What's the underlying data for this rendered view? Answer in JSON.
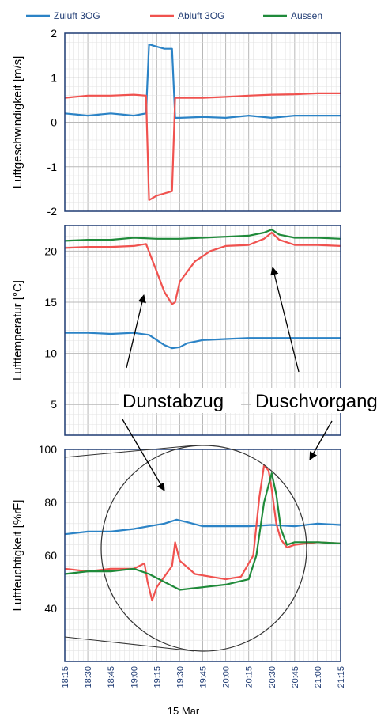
{
  "legend": [
    {
      "label": "Zuluft 3OG",
      "color": "#2b83c6"
    },
    {
      "label": "Abluft 3OG",
      "color": "#f0524f"
    },
    {
      "label": "Aussen",
      "color": "#1f8a3a"
    }
  ],
  "annotations": [
    "Dunstabzug",
    "Duschvorgang"
  ],
  "x_date_label": "15 Mar",
  "chart_data": [
    {
      "type": "line",
      "ylabel": "Luftgeschwindigkeit [m/s]",
      "ylim": [
        -2,
        2
      ],
      "yticks": [
        2,
        1,
        0,
        -1,
        -2
      ],
      "xlim": [
        "18:15",
        "21:15"
      ],
      "grid": true,
      "series": [
        {
          "name": "Zuluft 3OG",
          "color": "#2b83c6",
          "x": [
            "18:15",
            "18:30",
            "18:45",
            "19:00",
            "19:08",
            "19:10",
            "19:15",
            "19:20",
            "19:25",
            "19:27",
            "19:30",
            "19:45",
            "20:00",
            "20:15",
            "20:30",
            "20:45",
            "21:00",
            "21:15"
          ],
          "y": [
            0.2,
            0.15,
            0.2,
            0.15,
            0.2,
            1.75,
            1.7,
            1.65,
            1.65,
            0.1,
            0.1,
            0.12,
            0.1,
            0.15,
            0.1,
            0.15,
            0.15,
            0.15
          ]
        },
        {
          "name": "Abluft 3OG",
          "color": "#f0524f",
          "x": [
            "18:15",
            "18:30",
            "18:45",
            "19:00",
            "19:08",
            "19:10",
            "19:15",
            "19:20",
            "19:25",
            "19:27",
            "19:30",
            "19:45",
            "20:00",
            "20:15",
            "20:30",
            "20:45",
            "21:00",
            "21:15"
          ],
          "y": [
            0.55,
            0.6,
            0.6,
            0.62,
            0.6,
            -1.75,
            -1.65,
            -1.6,
            -1.55,
            0.55,
            0.55,
            0.55,
            0.57,
            0.6,
            0.62,
            0.63,
            0.65,
            0.65
          ]
        }
      ]
    },
    {
      "type": "line",
      "ylabel": "Lufttemperatur [°C]",
      "ylim": [
        2,
        22.5
      ],
      "yticks": [
        20,
        15,
        10,
        5
      ],
      "xlim": [
        "18:15",
        "21:15"
      ],
      "grid": true,
      "series": [
        {
          "name": "Zuluft 3OG",
          "color": "#2b83c6",
          "x": [
            "18:15",
            "18:30",
            "18:45",
            "19:00",
            "19:10",
            "19:20",
            "19:25",
            "19:30",
            "19:35",
            "19:45",
            "20:00",
            "20:15",
            "20:30",
            "20:45",
            "21:00",
            "21:15"
          ],
          "y": [
            12,
            12,
            11.9,
            12,
            11.8,
            10.8,
            10.5,
            10.6,
            11,
            11.3,
            11.4,
            11.5,
            11.5,
            11.5,
            11.5,
            11.5
          ]
        },
        {
          "name": "Abluft 3OG",
          "color": "#f0524f",
          "x": [
            "18:15",
            "18:30",
            "18:45",
            "19:00",
            "19:08",
            "19:15",
            "19:20",
            "19:25",
            "19:27",
            "19:30",
            "19:40",
            "19:50",
            "20:00",
            "20:15",
            "20:25",
            "20:30",
            "20:35",
            "20:45",
            "21:00",
            "21:15"
          ],
          "y": [
            20.3,
            20.4,
            20.4,
            20.5,
            20.7,
            18,
            16,
            14.8,
            15,
            17,
            19,
            20,
            20.5,
            20.6,
            21.2,
            21.8,
            21.1,
            20.6,
            20.6,
            20.5
          ]
        },
        {
          "name": "Aussen",
          "color": "#1f8a3a",
          "x": [
            "18:15",
            "18:30",
            "18:45",
            "19:00",
            "19:15",
            "19:30",
            "19:45",
            "20:00",
            "20:15",
            "20:25",
            "20:30",
            "20:35",
            "20:45",
            "21:00",
            "21:15"
          ],
          "y": [
            21,
            21.1,
            21.1,
            21.3,
            21.2,
            21.2,
            21.3,
            21.4,
            21.5,
            21.8,
            22.1,
            21.6,
            21.3,
            21.3,
            21.2
          ]
        }
      ]
    },
    {
      "type": "line",
      "ylabel": "Luftfeuchtigkeit [%rF]",
      "ylim": [
        20,
        100
      ],
      "yticks": [
        100,
        80,
        60,
        40
      ],
      "xlim": [
        "18:15",
        "21:15"
      ],
      "xticks": [
        "18:15",
        "18:30",
        "18:45",
        "19:00",
        "19:15",
        "19:30",
        "19:45",
        "20:00",
        "20:15",
        "20:30",
        "20:45",
        "21:00",
        "21:15"
      ],
      "grid": true,
      "series": [
        {
          "name": "Zuluft 3OG",
          "color": "#2b83c6",
          "x": [
            "18:15",
            "18:30",
            "18:45",
            "19:00",
            "19:10",
            "19:20",
            "19:28",
            "19:35",
            "19:45",
            "20:00",
            "20:15",
            "20:30",
            "20:45",
            "21:00",
            "21:15"
          ],
          "y": [
            68,
            69,
            69,
            70,
            71,
            72,
            73.5,
            72.5,
            71,
            71,
            71,
            71.5,
            71,
            72,
            71.5
          ]
        },
        {
          "name": "Abluft 3OG",
          "color": "#f0524f",
          "x": [
            "18:15",
            "18:30",
            "18:45",
            "19:00",
            "19:07",
            "19:09",
            "19:12",
            "19:15",
            "19:20",
            "19:25",
            "19:27",
            "19:30",
            "19:40",
            "19:50",
            "20:00",
            "20:10",
            "20:15",
            "20:18",
            "20:22",
            "20:25",
            "20:28",
            "20:30",
            "20:33",
            "20:36",
            "20:40",
            "20:45",
            "21:00",
            "21:15"
          ],
          "y": [
            55,
            54,
            55,
            55,
            57,
            50,
            43,
            48,
            52,
            56,
            65,
            58,
            53,
            52,
            51,
            52,
            57,
            60,
            82,
            94,
            92,
            85,
            72,
            66,
            63,
            64,
            65,
            64.5
          ]
        },
        {
          "name": "Aussen",
          "color": "#1f8a3a",
          "x": [
            "18:15",
            "18:30",
            "18:45",
            "19:00",
            "19:10",
            "19:20",
            "19:30",
            "19:45",
            "20:00",
            "20:15",
            "20:20",
            "20:25",
            "20:30",
            "20:33",
            "20:36",
            "20:40",
            "20:45",
            "21:00",
            "21:15"
          ],
          "y": [
            53,
            54,
            54,
            55,
            53,
            50,
            47,
            48,
            49,
            51,
            60,
            80,
            91,
            83,
            70,
            64,
            65,
            65,
            64.5
          ]
        }
      ]
    }
  ]
}
